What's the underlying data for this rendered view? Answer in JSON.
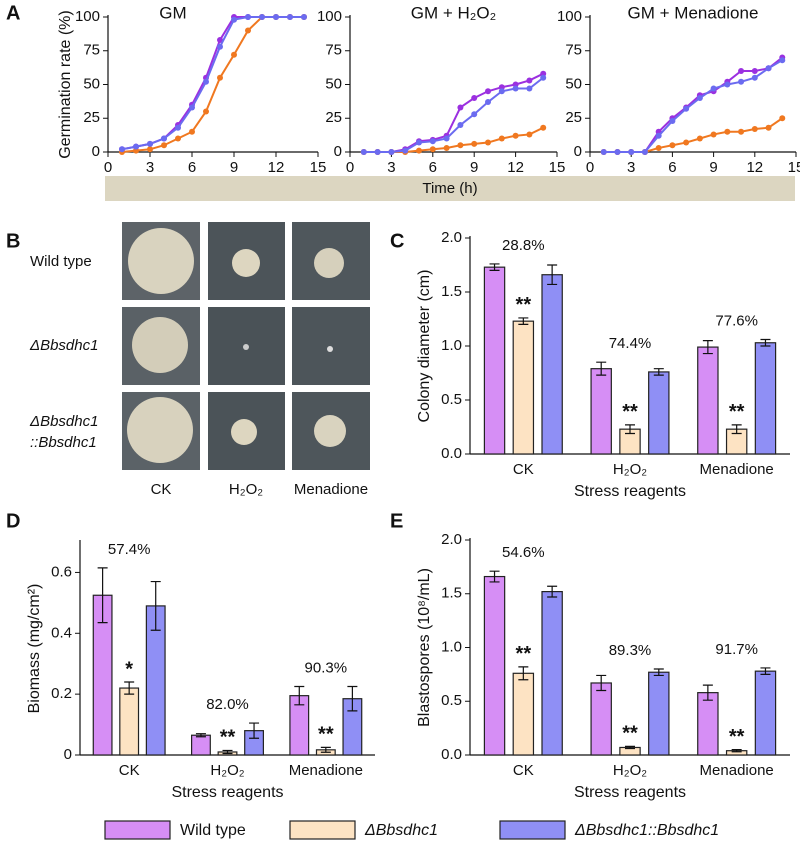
{
  "panel_labels": [
    "A",
    "B",
    "C",
    "D",
    "E"
  ],
  "panel_b": {
    "rows": [
      [
        "Wild  type"
      ],
      [
        "ΔBbsdhc1"
      ],
      [
        "ΔBbsdhc1",
        "::Bbsdhc1"
      ]
    ],
    "columns": [
      "CK",
      "H₂O₂",
      "Menadione"
    ]
  },
  "chart_data": [
    {
      "type": "line",
      "title": "GM",
      "ylabel": "Germination rate (%)",
      "xlim": [
        0,
        15
      ],
      "xticks": [
        0,
        3,
        6,
        9,
        12,
        15
      ],
      "ylim": [
        0,
        100
      ],
      "yticks": [
        0,
        25,
        50,
        75,
        100
      ],
      "x": [
        1,
        2,
        3,
        4,
        5,
        6,
        7,
        8,
        9,
        10,
        11,
        12,
        13,
        14
      ],
      "series": [
        {
          "name": "Wild type",
          "color": "#9b30e0",
          "values": [
            2,
            4,
            6,
            10,
            20,
            35,
            55,
            83,
            100,
            100,
            100,
            100,
            100,
            100
          ]
        },
        {
          "name": "ΔBbsdhc1",
          "color": "#f07820",
          "values": [
            0,
            1,
            2,
            5,
            10,
            15,
            30,
            55,
            72,
            90,
            100,
            100,
            100,
            100
          ]
        },
        {
          "name": "ΔBbsdhc1::Bbsdhc1",
          "color": "#6b6bf0",
          "values": [
            2,
            4,
            6,
            10,
            18,
            33,
            52,
            78,
            98,
            100,
            100,
            100,
            100,
            100
          ]
        }
      ]
    },
    {
      "type": "line",
      "title": "GM + H₂O₂",
      "xlabel": "Time (h)",
      "xlim": [
        0,
        15
      ],
      "xticks": [
        0,
        3,
        6,
        9,
        12,
        15
      ],
      "ylim": [
        0,
        100
      ],
      "yticks": [
        0,
        25,
        50,
        75,
        100
      ],
      "x": [
        1,
        2,
        3,
        4,
        5,
        6,
        7,
        8,
        9,
        10,
        11,
        12,
        13,
        14
      ],
      "series": [
        {
          "name": "Wild type",
          "color": "#9b30e0",
          "values": [
            0,
            0,
            0,
            2,
            8,
            9,
            12,
            33,
            40,
            45,
            48,
            50,
            53,
            58
          ]
        },
        {
          "name": "ΔBbsdhc1",
          "color": "#f07820",
          "values": [
            0,
            0,
            0,
            0,
            1,
            2,
            3,
            5,
            6,
            7,
            10,
            12,
            13,
            18
          ]
        },
        {
          "name": "ΔBbsdhc1::Bbsdhc1",
          "color": "#6b6bf0",
          "values": [
            0,
            0,
            0,
            1,
            7,
            8,
            10,
            20,
            28,
            37,
            45,
            47,
            47,
            55
          ]
        }
      ]
    },
    {
      "type": "line",
      "title": "GM + Menadione",
      "xlim": [
        0,
        15
      ],
      "xticks": [
        0,
        3,
        6,
        9,
        12,
        15
      ],
      "ylim": [
        0,
        100
      ],
      "yticks": [
        0,
        25,
        50,
        75,
        100
      ],
      "x": [
        1,
        2,
        3,
        4,
        5,
        6,
        7,
        8,
        9,
        10,
        11,
        12,
        13,
        14
      ],
      "series": [
        {
          "name": "Wild type",
          "color": "#9b30e0",
          "values": [
            0,
            0,
            0,
            0,
            15,
            25,
            33,
            42,
            45,
            52,
            60,
            60,
            62,
            70
          ]
        },
        {
          "name": "ΔBbsdhc1",
          "color": "#f07820",
          "values": [
            0,
            0,
            0,
            0,
            3,
            5,
            7,
            10,
            13,
            15,
            15,
            17,
            18,
            25
          ]
        },
        {
          "name": "ΔBbsdhc1::Bbsdhc1",
          "color": "#6b6bf0",
          "values": [
            0,
            0,
            0,
            0,
            12,
            23,
            32,
            40,
            47,
            50,
            52,
            55,
            62,
            68
          ]
        }
      ]
    },
    {
      "type": "bar",
      "ylabel": "Colony diameter (cm)",
      "xlabel": "Stress reagents",
      "categories": [
        "CK",
        "H₂O₂",
        "Menadione"
      ],
      "ylim": [
        0,
        2
      ],
      "yticks": [
        {
          "value": 0,
          "label": "0.0"
        },
        0.5,
        {
          "value": 1,
          "label": "1.0"
        },
        1.5,
        {
          "value": 2,
          "label": "2.0"
        }
      ],
      "annotations": [
        "28.8%",
        "74.4%",
        "77.6%"
      ],
      "significance": [
        "**",
        "**",
        "**"
      ],
      "series": [
        {
          "name": "Wild type",
          "color": "#d68ef5",
          "values": [
            1.73,
            0.79,
            0.99
          ],
          "errors": [
            0.03,
            0.06,
            0.06
          ]
        },
        {
          "name": "ΔBbsdhc1",
          "color": "#fde3c3",
          "values": [
            1.23,
            0.23,
            0.23
          ],
          "errors": [
            0.03,
            0.04,
            0.04
          ]
        },
        {
          "name": "ΔBbsdhc1::Bbsdhc1",
          "color": "#8f8ff5",
          "values": [
            1.66,
            0.76,
            1.03
          ],
          "errors": [
            0.09,
            0.03,
            0.03
          ]
        }
      ]
    },
    {
      "type": "bar",
      "ylabel": "Biomass  (mg/cm²)",
      "xlabel": "Stress reagents",
      "categories": [
        "CK",
        "H₂O₂",
        "Menadione"
      ],
      "ylim": [
        0,
        0.7
      ],
      "yticks": [
        0,
        0.2,
        0.4,
        0.6
      ],
      "annotations": [
        "57.4%",
        "82.0%",
        "90.3%"
      ],
      "significance": [
        "*",
        "**",
        "**"
      ],
      "series": [
        {
          "name": "Wild type",
          "color": "#d68ef5",
          "values": [
            0.525,
            0.065,
            0.195
          ],
          "errors": [
            0.09,
            0.005,
            0.03
          ]
        },
        {
          "name": "ΔBbsdhc1",
          "color": "#fde3c3",
          "values": [
            0.22,
            0.01,
            0.017
          ],
          "errors": [
            0.02,
            0.005,
            0.008
          ]
        },
        {
          "name": "ΔBbsdhc1::Bbsdhc1",
          "color": "#8f8ff5",
          "values": [
            0.49,
            0.08,
            0.185
          ],
          "errors": [
            0.08,
            0.025,
            0.04
          ]
        }
      ]
    },
    {
      "type": "bar",
      "ylabel": "Blastospores (10⁸/mL)",
      "xlabel": "Stress reagents",
      "categories": [
        "CK",
        "H₂O₂",
        "Menadione"
      ],
      "ylim": [
        0,
        2
      ],
      "yticks": [
        {
          "value": 0,
          "label": "0.0"
        },
        0.5,
        {
          "value": 1,
          "label": "1.0"
        },
        1.5,
        {
          "value": 2,
          "label": "2.0"
        }
      ],
      "annotations": [
        "54.6%",
        "89.3%",
        "91.7%"
      ],
      "significance": [
        "**",
        "**",
        "**"
      ],
      "series": [
        {
          "name": "Wild type",
          "color": "#d68ef5",
          "values": [
            1.66,
            0.67,
            0.58
          ],
          "errors": [
            0.05,
            0.07,
            0.07
          ]
        },
        {
          "name": "ΔBbsdhc1",
          "color": "#fde3c3",
          "values": [
            0.76,
            0.07,
            0.04
          ],
          "errors": [
            0.06,
            0.01,
            0.01
          ]
        },
        {
          "name": "ΔBbsdhc1::Bbsdhc1",
          "color": "#8f8ff5",
          "values": [
            1.52,
            0.77,
            0.78
          ],
          "errors": [
            0.05,
            0.03,
            0.03
          ]
        }
      ]
    }
  ]
}
